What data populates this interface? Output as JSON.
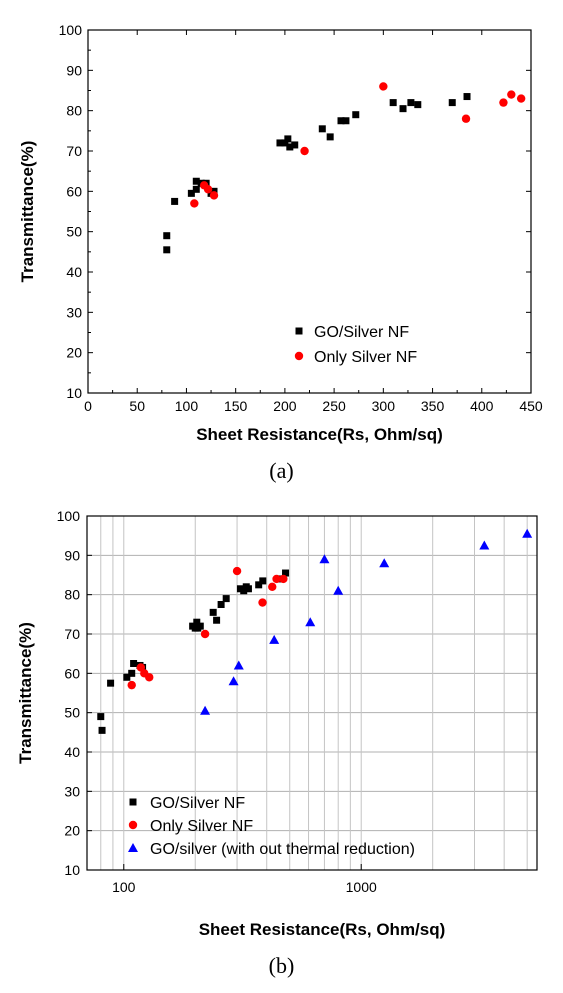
{
  "chart_data": [
    {
      "type": "scatter",
      "caption": "(a)",
      "xlabel": "Sheet Resistance(Rs, Ohm/sq)",
      "ylabel": "Transmittance(%)",
      "xscale": "linear",
      "xlim": [
        0,
        450
      ],
      "ylim": [
        10,
        100
      ],
      "xticks": [
        "0",
        "50",
        "100",
        "150",
        "200",
        "250",
        "300",
        "350",
        "400",
        "450"
      ],
      "yticks": [
        "10",
        "20",
        "30",
        "40",
        "50",
        "60",
        "70",
        "80",
        "90",
        "100"
      ],
      "grid": false,
      "legend_position": "bottom-right",
      "series": [
        {
          "name": "GO/Silver NF",
          "marker": "square",
          "color": "#000000",
          "points": [
            [
              80,
              49
            ],
            [
              80,
              45.5
            ],
            [
              88,
              57.5
            ],
            [
              105,
              59.5
            ],
            [
              110,
              60.5
            ],
            [
              110,
              62.5
            ],
            [
              115,
              62
            ],
            [
              120,
              62
            ],
            [
              125,
              59.5
            ],
            [
              128,
              60
            ],
            [
              195,
              72
            ],
            [
              200,
              72
            ],
            [
              203,
              73
            ],
            [
              205,
              71
            ],
            [
              210,
              71.5
            ],
            [
              238,
              75.5
            ],
            [
              246,
              73.5
            ],
            [
              257,
              77.5
            ],
            [
              262,
              77.5
            ],
            [
              272,
              79
            ],
            [
              310,
              82
            ],
            [
              320,
              80.5
            ],
            [
              328,
              82
            ],
            [
              335,
              81.5
            ],
            [
              370,
              82
            ],
            [
              385,
              83.5
            ]
          ]
        },
        {
          "name": "Only Silver NF",
          "marker": "circle",
          "color": "#ff0000",
          "points": [
            [
              108,
              57
            ],
            [
              118,
              61.5
            ],
            [
              122,
              60.5
            ],
            [
              128,
              59
            ],
            [
              220,
              70
            ],
            [
              300,
              86
            ],
            [
              384,
              78
            ],
            [
              422,
              82
            ],
            [
              430,
              84
            ],
            [
              440,
              83
            ]
          ]
        }
      ]
    },
    {
      "type": "scatter",
      "caption": "(b)",
      "xlabel": "Sheet Resistance(Rs, Ohm/sq)",
      "ylabel": "Transmittance(%)",
      "xscale": "log",
      "xlim": [
        70,
        5500
      ],
      "ylim": [
        10,
        100
      ],
      "xticks": [
        "100",
        "1000"
      ],
      "yticks": [
        "10",
        "20",
        "30",
        "40",
        "50",
        "60",
        "70",
        "80",
        "90",
        "100"
      ],
      "grid": true,
      "legend_position": "bottom-left",
      "series": [
        {
          "name": "GO/Silver NF",
          "marker": "square",
          "color": "#000000",
          "points": [
            [
              80,
              49
            ],
            [
              81,
              45.5
            ],
            [
              88,
              57.5
            ],
            [
              103,
              59
            ],
            [
              108,
              60
            ],
            [
              110,
              62.5
            ],
            [
              117,
              62
            ],
            [
              120,
              61.5
            ],
            [
              195,
              72
            ],
            [
              200,
              71.5
            ],
            [
              203,
              73
            ],
            [
              205,
              71.5
            ],
            [
              210,
              72
            ],
            [
              238,
              75.5
            ],
            [
              246,
              73.5
            ],
            [
              257,
              77.5
            ],
            [
              270,
              79
            ],
            [
              310,
              81.5
            ],
            [
              320,
              81
            ],
            [
              328,
              82
            ],
            [
              335,
              81.5
            ],
            [
              370,
              82.5
            ],
            [
              385,
              83.5
            ],
            [
              450,
              84
            ],
            [
              480,
              85.5
            ]
          ]
        },
        {
          "name": "Only Silver NF",
          "marker": "circle",
          "color": "#ff0000",
          "points": [
            [
              108,
              57
            ],
            [
              118,
              61.5
            ],
            [
              122,
              60
            ],
            [
              128,
              59
            ],
            [
              220,
              70
            ],
            [
              300,
              86
            ],
            [
              384,
              78
            ],
            [
              422,
              82
            ],
            [
              440,
              84
            ],
            [
              470,
              84
            ]
          ]
        },
        {
          "name": "GO/silver (with out thermal reduction)",
          "marker": "triangle",
          "color": "#0000ff",
          "points": [
            [
              220,
              50.5
            ],
            [
              290,
              58
            ],
            [
              305,
              62
            ],
            [
              430,
              68.5
            ],
            [
              610,
              73
            ],
            [
              700,
              89
            ],
            [
              800,
              81
            ],
            [
              1250,
              88
            ],
            [
              3300,
              92.5
            ],
            [
              5000,
              95.5
            ]
          ]
        }
      ]
    }
  ]
}
